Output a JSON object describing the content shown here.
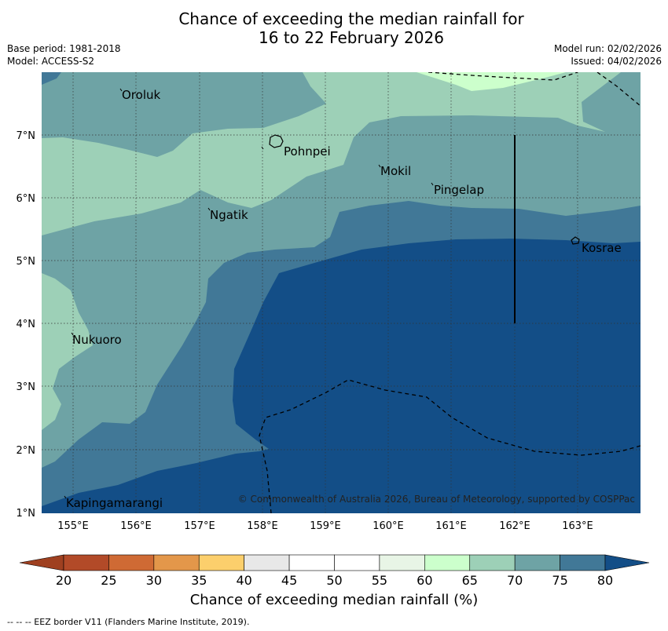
{
  "title": {
    "line1": "Chance of exceeding the median rainfall for",
    "line2": "16 to 22 February 2026"
  },
  "meta": {
    "base_period": "Base period: 1981-2018",
    "model": "Model: ACCESS-S2",
    "model_run": "Model run: 02/02/2026",
    "issued": "Issued: 04/02/2026"
  },
  "map": {
    "lon_range": [
      154.5,
      164.0
    ],
    "lat_range": [
      1.0,
      8.0
    ],
    "x_ticks": [
      "155°E",
      "156°E",
      "157°E",
      "158°E",
      "159°E",
      "160°E",
      "161°E",
      "162°E",
      "163°E"
    ],
    "y_ticks": [
      "7°N",
      "6°N",
      "5°N",
      "4°N",
      "3°N",
      "2°N",
      "1°N"
    ],
    "places": [
      {
        "name": "Oroluk"
      },
      {
        "name": "Pohnpei"
      },
      {
        "name": "Mokil"
      },
      {
        "name": "Pingelap"
      },
      {
        "name": "Ngatik"
      },
      {
        "name": "Kosrae"
      },
      {
        "name": "Nukuoro"
      },
      {
        "name": "Kapingamarangi"
      }
    ],
    "credit": "© Commonwealth of Australia 2026, Bureau of Meteorology, supported by COSPPac"
  },
  "colorbar": {
    "ticks": [
      "20",
      "25",
      "30",
      "35",
      "40",
      "45",
      "50",
      "55",
      "60",
      "65",
      "70",
      "75",
      "80"
    ],
    "colors": [
      "#b24a28",
      "#cf6a34",
      "#e3974a",
      "#fccf6c",
      "#e8e8e8",
      "#ffffff",
      "#ffffff",
      "#e8f5e6",
      "#ccffcc",
      "#9dd0b7",
      "#6ea3a5",
      "#417897"
    ],
    "under_color": "#9f4020",
    "over_color": "#134e87",
    "title": "Chance of exceeding median rainfall (%)"
  },
  "footer": "--  --  -- EEZ border V11 (Flanders Marine Institute, 2019)."
}
